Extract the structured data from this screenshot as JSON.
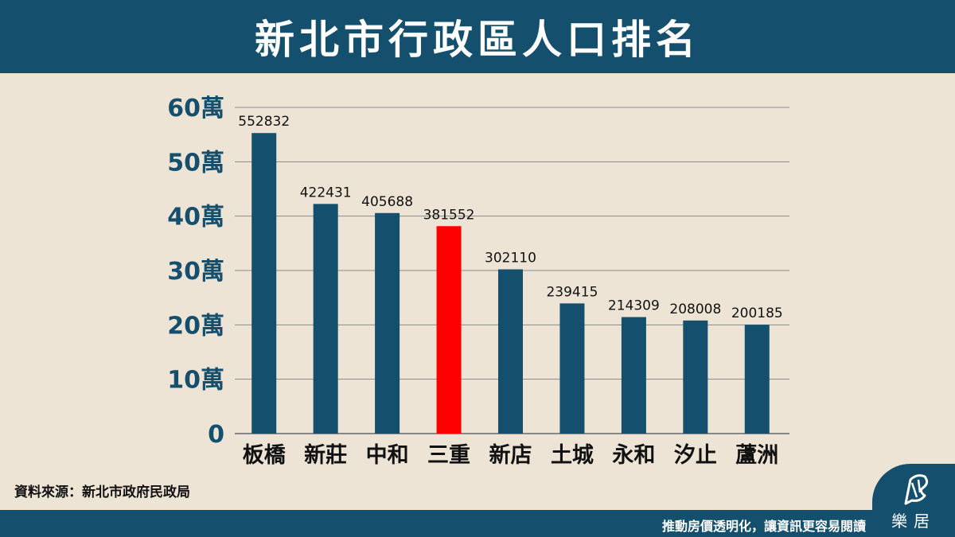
{
  "header": {
    "title": "新北市行政區人口排名"
  },
  "source": "資料來源：新北市政府民政局",
  "footer": {
    "slogan": "推動房價透明化，讓資訊更容易閱讀"
  },
  "logo": {
    "name": "樂居",
    "icon": "tree-icon"
  },
  "colors": {
    "primary": "#154f6e",
    "highlight": "#ff0000",
    "background": "#ede4d6"
  },
  "chart_data": {
    "type": "bar",
    "title": "新北市行政區人口排名",
    "categories": [
      "板橋",
      "新莊",
      "中和",
      "三重",
      "新店",
      "土城",
      "永和",
      "汐止",
      "蘆洲"
    ],
    "values": [
      552832,
      422431,
      405688,
      381552,
      302110,
      239415,
      214309,
      208008,
      200185
    ],
    "highlight_category": "三重",
    "ylim": [
      0,
      600000
    ],
    "yticks": [
      0,
      100000,
      200000,
      300000,
      400000,
      500000,
      600000
    ],
    "ytick_labels": [
      "0",
      "10萬",
      "20萬",
      "30萬",
      "40萬",
      "50萬",
      "60萬"
    ],
    "grid": true,
    "xlabel": "",
    "ylabel": ""
  }
}
